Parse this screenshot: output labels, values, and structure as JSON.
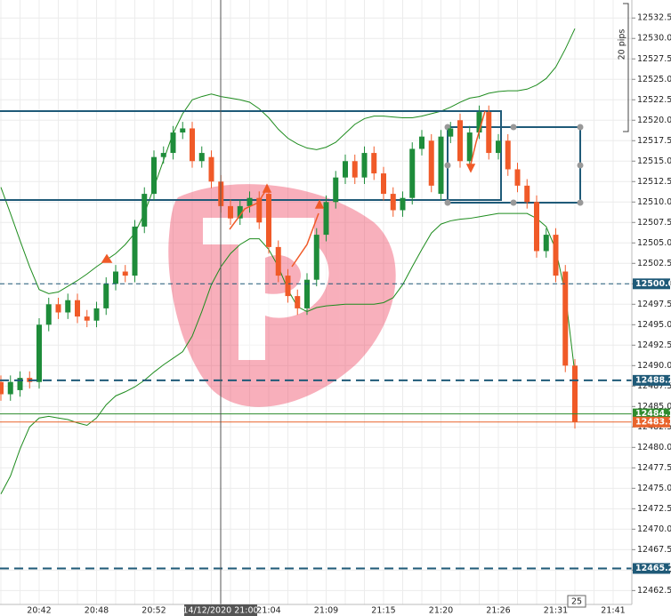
{
  "chart_data": {
    "type": "candlestick",
    "categories": [
      null,
      null,
      null,
      null,
      "20:42",
      null,
      null,
      null,
      null,
      null,
      "20:48",
      null,
      null,
      null,
      null,
      null,
      "20:52",
      null,
      null,
      null,
      null,
      null,
      null,
      null,
      null,
      null,
      null,
      null,
      "21:04",
      null,
      null,
      null,
      null,
      null,
      "21:09",
      null,
      null,
      null,
      null,
      null,
      "21:15",
      null,
      null,
      null,
      null,
      null,
      "21:20",
      null,
      null,
      null,
      null,
      null,
      "21:26",
      null,
      null,
      null,
      null,
      null,
      "21:31",
      null,
      null,
      null,
      null,
      null,
      "21:41",
      null
    ],
    "open": [
      12488,
      12486.5,
      12487,
      12488.5,
      12488,
      12495,
      12497.5,
      12496.5,
      12498,
      12496,
      12495.5,
      12497,
      12500,
      12501.5,
      12501,
      12507,
      12511,
      12515.5,
      12516,
      12518.5,
      12519,
      12515,
      12515.5,
      12512.5,
      12509.5,
      12508,
      12509.5,
      12510.5,
      12511,
      12504.5,
      12501,
      12498.5,
      12497,
      12500.5,
      12506,
      12510,
      12513,
      12515,
      12513,
      12516,
      12513.5,
      12511,
      12509,
      12510.5,
      12516.5,
      12517.5,
      12511,
      12518,
      12520,
      12515,
      12518.5,
      12521,
      12516,
      12517.5,
      12514,
      12512,
      12510,
      12504,
      12506,
      12501.5,
      12490,
      null,
      null,
      null,
      null,
      null
    ],
    "high": [
      12488.8,
      12488.8,
      12489.3,
      12489.3,
      12495.8,
      12498.3,
      12498.3,
      12498.8,
      12498.8,
      12496.8,
      12497.8,
      12500.8,
      12502.3,
      12502.3,
      12507.8,
      12511.8,
      12516.3,
      12516.8,
      12519.3,
      12519.8,
      12519.8,
      12516.8,
      12516.3,
      12513.3,
      12510.3,
      12510.3,
      12511.3,
      12511.3,
      12511.8,
      12505.3,
      12501.8,
      12499.3,
      12501.3,
      12506.8,
      12510.8,
      12513.8,
      12515.8,
      12515.8,
      12516.8,
      12516.8,
      12514.3,
      12511.8,
      12511.3,
      12517.3,
      12518.8,
      12518.3,
      12518.8,
      12519.8,
      12520.8,
      12519.3,
      12521.8,
      12521.8,
      12518.3,
      12518.3,
      12514.8,
      12512.8,
      12510.8,
      12506.8,
      12506.8,
      12502.3,
      12490.8,
      null,
      null,
      null,
      null,
      null
    ],
    "low": [
      12485.7,
      12485.7,
      12486.2,
      12487.2,
      12487.2,
      12494.2,
      12495.7,
      12495.7,
      12495.2,
      12494.7,
      12494.7,
      12496.2,
      12499.2,
      12500.2,
      12500.2,
      12506.2,
      12510.2,
      12514.7,
      12515.2,
      12517.7,
      12514.2,
      12514.2,
      12511.7,
      12508.7,
      12507.2,
      12507.2,
      12508.7,
      12506.7,
      12503.7,
      12500.2,
      12497.7,
      12496.2,
      12496.2,
      12499.7,
      12505.2,
      12509.2,
      12512.2,
      12512.2,
      12512.2,
      12512.7,
      12510.2,
      12508.2,
      12508.2,
      12509.7,
      12515.7,
      12511.2,
      12510.2,
      12517.2,
      12514.2,
      12514.2,
      12517.7,
      12515.2,
      12515.2,
      12513.2,
      12511.2,
      12509.2,
      12503.2,
      12503.2,
      12500.2,
      12489.2,
      12482.3,
      null,
      null,
      null,
      null,
      null
    ],
    "close": [
      12486.5,
      12488,
      12488.5,
      12488,
      12495,
      12497.5,
      12496.5,
      12498,
      12496,
      12495.5,
      12497,
      12500,
      12501.5,
      12501,
      12507,
      12511,
      12515.5,
      12516,
      12518.5,
      12519,
      12515,
      12516,
      12512.5,
      12509.5,
      12508,
      12509.5,
      12510.5,
      12507.5,
      12504.5,
      12501,
      12498.5,
      12497,
      12500.5,
      12506,
      12510,
      12513,
      12515,
      12513,
      12516,
      12513.5,
      12511,
      12509,
      12510.5,
      12516.5,
      12518,
      12512,
      12518,
      12519,
      12515,
      12518.5,
      12521,
      12516,
      12517.5,
      12514,
      12512,
      12510,
      12504,
      12506,
      12501,
      12490,
      12483.1,
      null,
      null,
      null,
      null,
      null
    ],
    "upper_band": [
      12511.8,
      12508.6,
      12505.3,
      12502.1,
      12499.3,
      12498.8,
      12499,
      12499.7,
      12500.4,
      12501.2,
      12502.1,
      12502.9,
      12503.7,
      12504.8,
      12506.2,
      12508.6,
      12511.8,
      12515.1,
      12518.4,
      12520.8,
      12522.5,
      12522.9,
      12523.2,
      12522.9,
      12522.7,
      12522.5,
      12522.2,
      12521.4,
      12520.3,
      12518.9,
      12517.8,
      12517.1,
      12516.6,
      12516.4,
      12516.7,
      12517.3,
      12518.4,
      12519.5,
      12520.2,
      12520.5,
      12520.5,
      12520.4,
      12520.3,
      12520.3,
      12520.5,
      12520.8,
      12521.1,
      12521.6,
      12522.2,
      12522.7,
      12522.9,
      12523.3,
      12523.5,
      12523.6,
      12523.6,
      12523.8,
      12524.3,
      12525.1,
      12526.5,
      12528.7,
      12531.2,
      null,
      null,
      null,
      null,
      null
    ],
    "lower_band": [
      12474.3,
      12476.5,
      12479.8,
      12482.5,
      12483.6,
      12483.8,
      12483.6,
      12483.4,
      12483,
      12482.7,
      12483.6,
      12485.2,
      12486.3,
      12486.8,
      12487.4,
      12488.2,
      12489.2,
      12490.1,
      12490.9,
      12491.7,
      12493.6,
      12496.6,
      12499.9,
      12502.1,
      12503.7,
      12504.8,
      12505.5,
      12505.5,
      12504.2,
      12502.1,
      12499.3,
      12497.2,
      12496.6,
      12497.1,
      12497.3,
      12497.4,
      12497.5,
      12497.5,
      12497.5,
      12497.5,
      12497.7,
      12498.3,
      12499.9,
      12502.1,
      12504.2,
      12506.2,
      12507.3,
      12507.7,
      12507.9,
      12508,
      12508.2,
      12508.4,
      12508.6,
      12508.6,
      12508.6,
      12508.6,
      12508,
      12507,
      12504.2,
      12498.8,
      12489,
      null,
      null,
      null,
      null,
      null
    ],
    "up_color": "#1e8c3a",
    "down_color": "#f05a28",
    "band_color": "#1e8c1e",
    "ylim": [
      12460.8,
      12534.7
    ],
    "yticks": [
      12462.5,
      {
        "value": 12465,
        "label": "12465.0"
      },
      12467.5,
      {
        "value": 12470,
        "label": "12470.0"
      },
      12472.5,
      {
        "value": 12475,
        "label": "12475.0"
      },
      12477.5,
      {
        "value": 12480,
        "label": "12480.0"
      },
      12482.5,
      {
        "value": 12485,
        "label": "12485.0"
      },
      12487.5,
      {
        "value": 12490,
        "label": "12490.0"
      },
      12492.5,
      {
        "value": 12495,
        "label": "12495.0"
      },
      12497.5,
      {
        "value": 12500,
        "label": "12500.0"
      },
      12502.5,
      {
        "value": 12505,
        "label": "12505.0"
      },
      12507.5,
      {
        "value": 12510,
        "label": "12510.0"
      },
      12512.5,
      {
        "value": 12515,
        "label": "12515.0"
      },
      12517.5,
      {
        "value": 12520,
        "label": "12520.0"
      },
      12522.5,
      {
        "value": 12525,
        "label": "12525.0"
      },
      12527.5,
      {
        "value": 12530,
        "label": "12530.0"
      },
      12532.5
    ],
    "grid": true,
    "levels": [
      {
        "value": 12500,
        "label": "12500.0",
        "color": "#1f5a78",
        "dash": "thin"
      },
      {
        "value": 12488.2,
        "color": "#1f5a78",
        "dash": "thick"
      },
      {
        "value": 12484.1,
        "color": "#2e8b2e",
        "dash": "none"
      },
      {
        "value": 12483.1,
        "color": "#e8632b",
        "dash": "none"
      },
      {
        "value": 12465.2,
        "color": "#1f5a78",
        "dash": "thick"
      }
    ],
    "crosshair_label": "14/12/2020 21:00",
    "pips_label": "20 pips",
    "countdown": "25"
  }
}
